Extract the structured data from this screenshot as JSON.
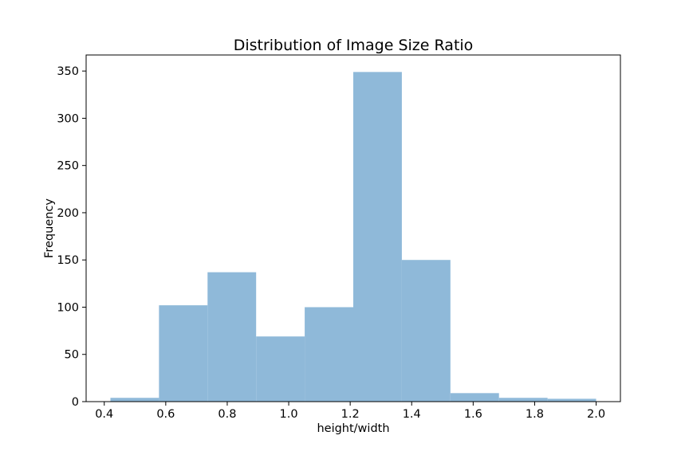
{
  "chart_data": {
    "type": "bar",
    "title": "Distribution of Image Size Ratio",
    "xlabel": "height/width",
    "ylabel": "Frequency",
    "bin_edges": [
      0.42,
      0.578,
      0.736,
      0.894,
      1.052,
      1.21,
      1.368,
      1.526,
      1.684,
      1.842,
      2.0
    ],
    "values": [
      4,
      102,
      137,
      69,
      100,
      349,
      150,
      9,
      4,
      3
    ],
    "xlim": [
      0.341,
      2.079
    ],
    "ylim": [
      0,
      367
    ],
    "xticks": [
      0.4,
      0.6,
      0.8,
      1.0,
      1.2,
      1.4,
      1.6,
      1.8,
      2.0
    ],
    "xtick_labels": [
      "0.4",
      "0.6",
      "0.8",
      "1.0",
      "1.2",
      "1.4",
      "1.6",
      "1.8",
      "2.0"
    ],
    "yticks": [
      0,
      50,
      100,
      150,
      200,
      250,
      300,
      350
    ],
    "ytick_labels": [
      "0",
      "50",
      "100",
      "150",
      "200",
      "250",
      "300",
      "350"
    ],
    "grid": false,
    "bar_color": "#8fb9d9"
  }
}
